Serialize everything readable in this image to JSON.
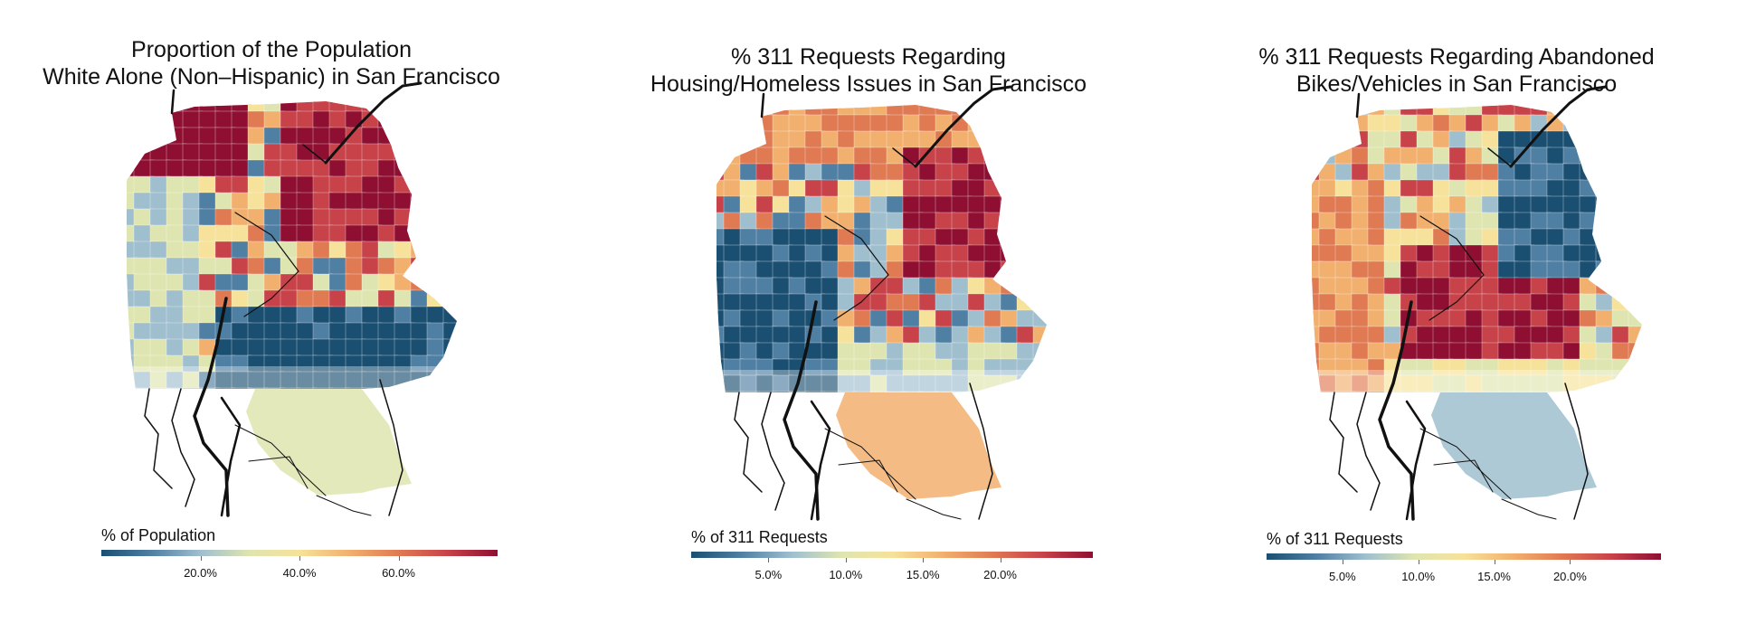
{
  "maps": [
    {
      "title_line1": "Proportion of the Population",
      "title_line2": "White Alone (Non–Hispanic) in San Francisco",
      "legend": {
        "title": "% of Population",
        "tick_labels": [
          "20.0%",
          "40.0%",
          "60.0%"
        ],
        "tick_values": [
          20,
          40,
          60
        ],
        "min": 0,
        "max": 80
      }
    },
    {
      "title_line1": "% 311 Requests Regarding",
      "title_line2": "Housing/Homeless Issues in San Francisco",
      "legend": {
        "title": "% of 311 Requests",
        "tick_labels": [
          "5.0%",
          "10.0%",
          "15.0%",
          "20.0%"
        ],
        "tick_values": [
          5,
          10,
          15,
          20
        ],
        "min": 0,
        "max": 26
      }
    },
    {
      "title_line1": "% 311 Requests Regarding Abandoned",
      "title_line2": "Bikes/Vehicles in San Francisco",
      "legend": {
        "title": "% of 311 Requests",
        "tick_labels": [
          "5.0%",
          "10.0%",
          "15.0%",
          "20.0%"
        ],
        "tick_values": [
          5,
          10,
          15,
          20
        ],
        "min": 0,
        "max": 26
      }
    }
  ],
  "colors": {
    "scale": [
      "#1b4f72",
      "#4f7fa3",
      "#9fbfcf",
      "#dfe5b0",
      "#f6e29a",
      "#f2b06e",
      "#e07a53",
      "#c8424a",
      "#8e0f32"
    ],
    "roads": "#111111",
    "mask": "#ffffff"
  }
}
